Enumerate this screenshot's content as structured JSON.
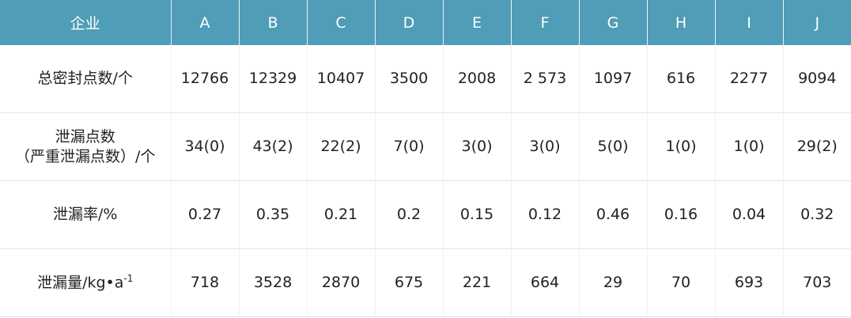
{
  "table": {
    "header": [
      "企业",
      "A",
      "B",
      "C",
      "D",
      "E",
      "F",
      "G",
      "H",
      "I",
      "J"
    ],
    "rows": [
      {
        "label": "总密封点数/个",
        "cells": [
          "12766",
          "12329",
          "10407",
          "3500",
          "2008",
          "2 573",
          "1097",
          "616",
          "2277",
          "9094"
        ]
      },
      {
        "label": [
          "泄漏点数",
          "（严重泄漏点数）/个"
        ],
        "cells": [
          "34(0)",
          "43(2)",
          "22(2)",
          "7(0)",
          "3(0)",
          "3(0)",
          "5(0)",
          "1(0)",
          "1(0)",
          "29(2)"
        ]
      },
      {
        "label": "泄漏率/%",
        "cells": [
          "0.27",
          "0.35",
          "0.21",
          "0.2",
          "0.15",
          "0.12",
          "0.46",
          "0.16",
          "0.04",
          "0.32"
        ]
      },
      {
        "label": {
          "text": "泄漏量/kg•a",
          "sup": "-1"
        },
        "cells": [
          "718",
          "3528",
          "2870",
          "675",
          "221",
          "664",
          "29",
          "70",
          "693",
          "703"
        ]
      }
    ]
  }
}
